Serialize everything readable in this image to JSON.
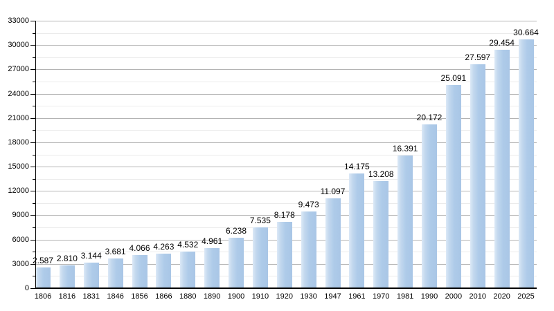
{
  "chart_data": {
    "type": "bar",
    "title": "",
    "xlabel": "",
    "ylabel": "",
    "categories": [
      "1806",
      "1816",
      "1831",
      "1846",
      "1856",
      "1866",
      "1880",
      "1890",
      "1900",
      "1910",
      "1920",
      "1930",
      "1947",
      "1961",
      "1970",
      "1981",
      "1990",
      "2000",
      "2010",
      "2020",
      "2025"
    ],
    "values": [
      2587,
      2810,
      3144,
      3681,
      4066,
      4263,
      4532,
      4961,
      6238,
      7535,
      8178,
      9473,
      11097,
      14175,
      13208,
      16391,
      20172,
      25091,
      27597,
      29454,
      30664
    ],
    "value_labels": [
      "2.587",
      "2.810",
      "3.144",
      "3.681",
      "4.066",
      "4.263",
      "4.532",
      "4.961",
      "6.238",
      "7.535",
      "8.178",
      "9.473",
      "11.097",
      "14.175",
      "13.208",
      "16.391",
      "20.172",
      "25.091",
      "27.597",
      "29.454",
      "30.664"
    ],
    "ylim": [
      0,
      33000
    ],
    "y_major_step": 3000,
    "y_minor_step": 1500,
    "y_tick_labels": [
      "0",
      "3000",
      "6000",
      "9000",
      "12000",
      "15000",
      "18000",
      "21000",
      "24000",
      "27000",
      "30000",
      "33000"
    ],
    "grid": true,
    "legend": "none"
  },
  "colors": {
    "bar_main": "#aecbe9",
    "bar_highlight": "#dce9f7",
    "grid_major": "#b3b3b3",
    "grid_minor": "#ebebeb",
    "axis": "#000000",
    "text": "#000000",
    "background": "#ffffff"
  }
}
